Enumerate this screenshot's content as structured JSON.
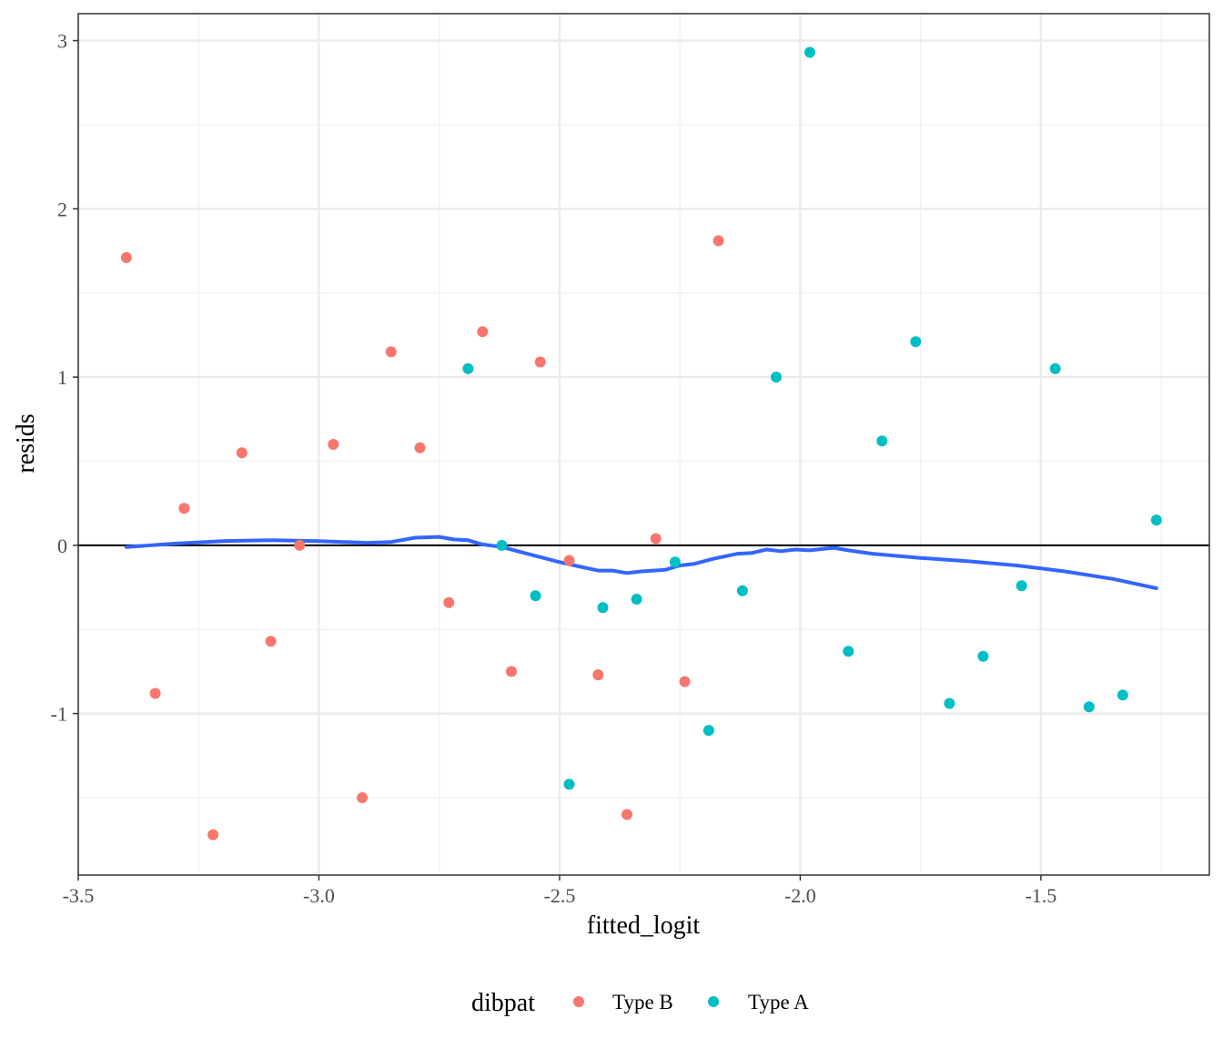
{
  "chart_data": {
    "type": "scatter",
    "xlabel": "fitted_logit",
    "ylabel": "resids",
    "xlim": [
      -3.5,
      -1.15
    ],
    "ylim": [
      -1.96,
      3.16
    ],
    "x_ticks": [
      -3.5,
      -3.0,
      -2.5,
      -2.0,
      -1.5
    ],
    "x_tick_labels": [
      "-3.5",
      "-3.0",
      "-2.5",
      "-2.0",
      "-1.5"
    ],
    "y_ticks": [
      -1,
      0,
      1,
      2,
      3
    ],
    "y_tick_labels": [
      "-1",
      "0",
      "1",
      "2",
      "3"
    ],
    "grid": true,
    "reference_line_y": 0,
    "legend": {
      "title": "dibpat",
      "position": "bottom",
      "entries": [
        {
          "label": "Type B",
          "color": "#F8766D"
        },
        {
          "label": "Type A",
          "color": "#00BFC4"
        }
      ]
    },
    "series": [
      {
        "name": "Type B",
        "color": "#F8766D",
        "points": [
          {
            "x": -3.4,
            "y": 1.71
          },
          {
            "x": -3.34,
            "y": -0.88
          },
          {
            "x": -3.28,
            "y": 0.22
          },
          {
            "x": -3.22,
            "y": -1.72
          },
          {
            "x": -3.16,
            "y": 0.55
          },
          {
            "x": -3.1,
            "y": -0.57
          },
          {
            "x": -3.04,
            "y": 0.0
          },
          {
            "x": -2.97,
            "y": 0.6
          },
          {
            "x": -2.91,
            "y": -1.5
          },
          {
            "x": -2.85,
            "y": 1.15
          },
          {
            "x": -2.79,
            "y": 0.58
          },
          {
            "x": -2.73,
            "y": -0.34
          },
          {
            "x": -2.66,
            "y": 1.27
          },
          {
            "x": -2.6,
            "y": -0.75
          },
          {
            "x": -2.54,
            "y": 1.09
          },
          {
            "x": -2.48,
            "y": -0.09
          },
          {
            "x": -2.42,
            "y": -0.77
          },
          {
            "x": -2.36,
            "y": -1.6
          },
          {
            "x": -2.3,
            "y": 0.04
          },
          {
            "x": -2.24,
            "y": -0.81
          },
          {
            "x": -2.17,
            "y": 1.81
          }
        ]
      },
      {
        "name": "Type A",
        "color": "#00BFC4",
        "points": [
          {
            "x": -2.69,
            "y": 1.05
          },
          {
            "x": -2.62,
            "y": 0.0
          },
          {
            "x": -2.55,
            "y": -0.3
          },
          {
            "x": -2.48,
            "y": -1.42
          },
          {
            "x": -2.41,
            "y": -0.37
          },
          {
            "x": -2.34,
            "y": -0.32
          },
          {
            "x": -2.26,
            "y": -0.1
          },
          {
            "x": -2.19,
            "y": -1.1
          },
          {
            "x": -2.12,
            "y": -0.27
          },
          {
            "x": -2.05,
            "y": 1.0
          },
          {
            "x": -1.98,
            "y": 2.93
          },
          {
            "x": -1.9,
            "y": -0.63
          },
          {
            "x": -1.83,
            "y": 0.62
          },
          {
            "x": -1.76,
            "y": 1.21
          },
          {
            "x": -1.69,
            "y": -0.94
          },
          {
            "x": -1.62,
            "y": -0.66
          },
          {
            "x": -1.54,
            "y": -0.24
          },
          {
            "x": -1.47,
            "y": 1.05
          },
          {
            "x": -1.4,
            "y": -0.96
          },
          {
            "x": -1.33,
            "y": -0.89
          },
          {
            "x": -1.26,
            "y": 0.15
          }
        ]
      }
    ],
    "smooth_line": {
      "color": "#3366FF",
      "points": [
        {
          "x": -3.4,
          "y": -0.01
        },
        {
          "x": -3.3,
          "y": 0.01
        },
        {
          "x": -3.2,
          "y": 0.025
        },
        {
          "x": -3.1,
          "y": 0.03
        },
        {
          "x": -3.0,
          "y": 0.025
        },
        {
          "x": -2.9,
          "y": 0.015
        },
        {
          "x": -2.85,
          "y": 0.02
        },
        {
          "x": -2.8,
          "y": 0.045
        },
        {
          "x": -2.75,
          "y": 0.05
        },
        {
          "x": -2.72,
          "y": 0.035
        },
        {
          "x": -2.69,
          "y": 0.03
        },
        {
          "x": -2.66,
          "y": 0.005
        },
        {
          "x": -2.62,
          "y": -0.01
        },
        {
          "x": -2.58,
          "y": -0.04
        },
        {
          "x": -2.54,
          "y": -0.07
        },
        {
          "x": -2.5,
          "y": -0.1
        },
        {
          "x": -2.46,
          "y": -0.125
        },
        {
          "x": -2.42,
          "y": -0.15
        },
        {
          "x": -2.39,
          "y": -0.15
        },
        {
          "x": -2.36,
          "y": -0.165
        },
        {
          "x": -2.33,
          "y": -0.155
        },
        {
          "x": -2.28,
          "y": -0.145
        },
        {
          "x": -2.25,
          "y": -0.12
        },
        {
          "x": -2.22,
          "y": -0.11
        },
        {
          "x": -2.18,
          "y": -0.08
        },
        {
          "x": -2.13,
          "y": -0.05
        },
        {
          "x": -2.1,
          "y": -0.045
        },
        {
          "x": -2.07,
          "y": -0.025
        },
        {
          "x": -2.04,
          "y": -0.035
        },
        {
          "x": -2.01,
          "y": -0.025
        },
        {
          "x": -1.98,
          "y": -0.03
        },
        {
          "x": -1.95,
          "y": -0.02
        },
        {
          "x": -1.93,
          "y": -0.015
        },
        {
          "x": -1.9,
          "y": -0.03
        },
        {
          "x": -1.85,
          "y": -0.05
        },
        {
          "x": -1.75,
          "y": -0.075
        },
        {
          "x": -1.65,
          "y": -0.095
        },
        {
          "x": -1.55,
          "y": -0.12
        },
        {
          "x": -1.45,
          "y": -0.155
        },
        {
          "x": -1.35,
          "y": -0.2
        },
        {
          "x": -1.26,
          "y": -0.255
        }
      ]
    }
  }
}
